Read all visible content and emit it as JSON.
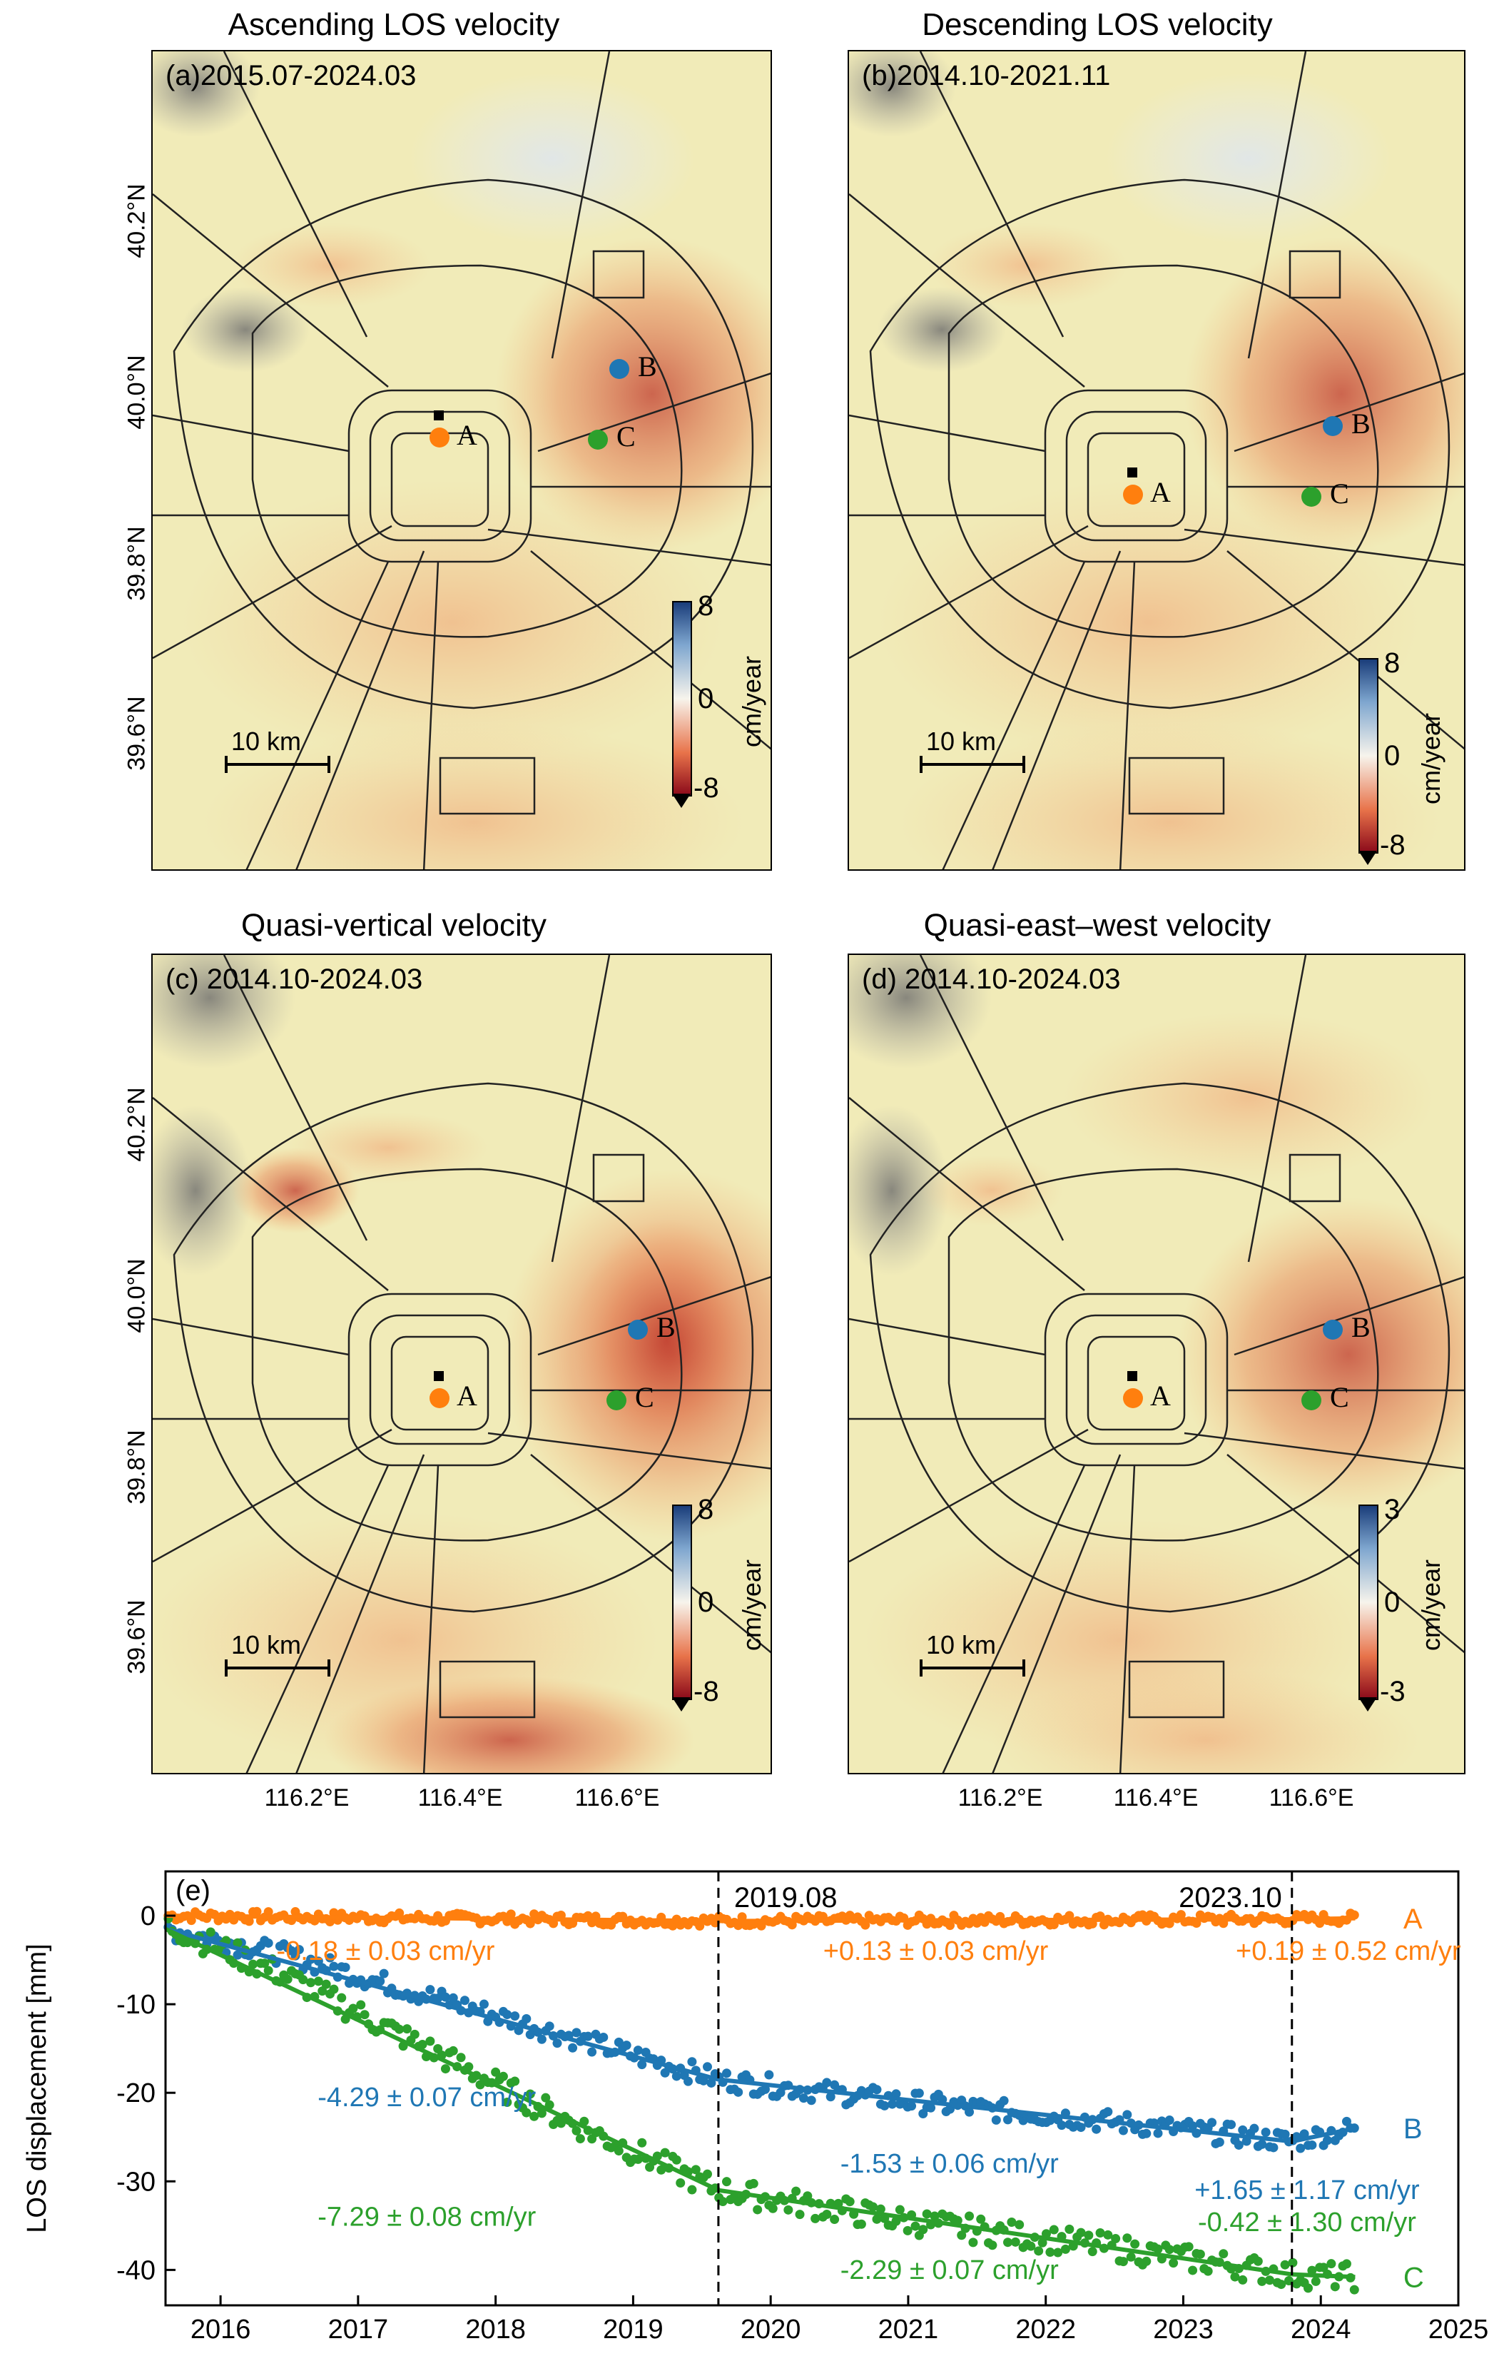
{
  "panels": [
    {
      "title": "Ascending LOS velocity",
      "label": "(a)2015.07-2024.03",
      "cbar_max": "8",
      "cbar_zero": "0",
      "cbar_min": "-8",
      "cbar_unit": "cm/year"
    },
    {
      "title": "Descending LOS velocity",
      "label": "(b)2014.10-2021.11",
      "cbar_max": "8",
      "cbar_zero": "0",
      "cbar_min": "-8",
      "cbar_unit": "cm/year"
    },
    {
      "title": "Quasi-vertical velocity",
      "label": "(c) 2014.10-2024.03",
      "cbar_max": "8",
      "cbar_zero": "0",
      "cbar_min": "-8",
      "cbar_unit": "cm/year"
    },
    {
      "title": "Quasi-east–west velocity",
      "label": "(d) 2014.10-2024.03",
      "cbar_max": "3",
      "cbar_zero": "0",
      "cbar_min": "-3",
      "cbar_unit": "cm/year"
    }
  ],
  "map_axes": {
    "lat_ticks": [
      "40.2°N",
      "40.0°N",
      "39.8°N",
      "39.6°N"
    ],
    "lon_ticks": [
      "116.2°E",
      "116.4°E",
      "116.6°E"
    ],
    "scale_bar": "10 km"
  },
  "points": {
    "A": "A",
    "B": "B",
    "C": "C"
  },
  "colors": {
    "A": "#ff7f0e",
    "B": "#1f77b4",
    "C": "#2ca02c",
    "map_base": "#f1ebb8"
  },
  "chart_data": {
    "type": "scatter",
    "panel_label": "(e)",
    "ylabel": "LOS displacement [mm]",
    "xlim": [
      2015.6,
      2025.0
    ],
    "ylim": [
      -44,
      5
    ],
    "x_ticks": [
      2016,
      2017,
      2018,
      2019,
      2020,
      2021,
      2022,
      2023,
      2024,
      2025
    ],
    "x_tick_labels": [
      "2016",
      "2017",
      "2018",
      "2019",
      "2020",
      "2021",
      "2022",
      "2023",
      "2024",
      "2025"
    ],
    "y_ticks": [
      0,
      -10,
      -20,
      -30,
      -40
    ],
    "y_tick_labels": [
      "0",
      "-10",
      "-20",
      "-30",
      "-40"
    ],
    "vlines": [
      {
        "x": 2019.62,
        "label": "2019.08"
      },
      {
        "x": 2023.79,
        "label": "2023.10"
      }
    ],
    "series": [
      {
        "name": "A",
        "color": "#ff7f0e",
        "segments": [
          {
            "x0": 2015.6,
            "y0": 0.0,
            "x1": 2019.62,
            "y1": -0.6
          },
          {
            "x0": 2019.62,
            "y0": -0.6,
            "x1": 2023.79,
            "y1": -0.4
          },
          {
            "x0": 2023.79,
            "y0": -0.4,
            "x1": 2024.25,
            "y1": -0.3
          }
        ],
        "anchors": [
          [
            2015.6,
            0.0
          ],
          [
            2019.62,
            -0.6
          ],
          [
            2023.79,
            -0.4
          ],
          [
            2024.25,
            -0.3
          ]
        ],
        "rates": [
          "-0.18 ± 0.03 cm/yr",
          "+0.13 ± 0.03 cm/yr",
          "+0.19 ± 0.52 cm/yr"
        ]
      },
      {
        "name": "B",
        "color": "#1f77b4",
        "segments": [
          {
            "x0": 2015.6,
            "y0": -1.5,
            "x1": 2019.62,
            "y1": -18.5
          },
          {
            "x0": 2019.62,
            "y0": -18.5,
            "x1": 2023.79,
            "y1": -25.5
          },
          {
            "x0": 2023.79,
            "y0": -25.5,
            "x1": 2024.25,
            "y1": -24.0
          }
        ],
        "anchors": [
          [
            2015.6,
            -1.5
          ],
          [
            2016.5,
            -4.5
          ],
          [
            2017.5,
            -9.0
          ],
          [
            2018.5,
            -13.5
          ],
          [
            2019.62,
            -18.5
          ],
          [
            2021.0,
            -21.0
          ],
          [
            2022.5,
            -23.3
          ],
          [
            2023.79,
            -25.5
          ],
          [
            2024.25,
            -24.0
          ]
        ],
        "rates": [
          "-4.29 ± 0.07 cm/yr",
          "-1.53 ± 0.06 cm/yr",
          "+1.65 ± 1.17 cm/yr"
        ]
      },
      {
        "name": "C",
        "color": "#2ca02c",
        "segments": [
          {
            "x0": 2015.6,
            "y0": -1.5,
            "x1": 2019.62,
            "y1": -31.0
          },
          {
            "x0": 2019.62,
            "y0": -31.0,
            "x1": 2023.79,
            "y1": -40.5
          },
          {
            "x0": 2023.79,
            "y0": -40.5,
            "x1": 2024.25,
            "y1": -40.8
          }
        ],
        "anchors": [
          [
            2015.6,
            -1.0
          ],
          [
            2016.5,
            -7.0
          ],
          [
            2017.5,
            -15.0
          ],
          [
            2018.5,
            -23.0
          ],
          [
            2019.62,
            -31.0
          ],
          [
            2021.0,
            -34.5
          ],
          [
            2022.5,
            -37.5
          ],
          [
            2023.79,
            -40.5
          ],
          [
            2024.25,
            -40.8
          ]
        ],
        "rates": [
          "-7.29 ± 0.08 cm/yr",
          "-2.29 ± 0.07 cm/yr",
          "-0.42 ± 1.30 cm/yr"
        ]
      }
    ]
  }
}
